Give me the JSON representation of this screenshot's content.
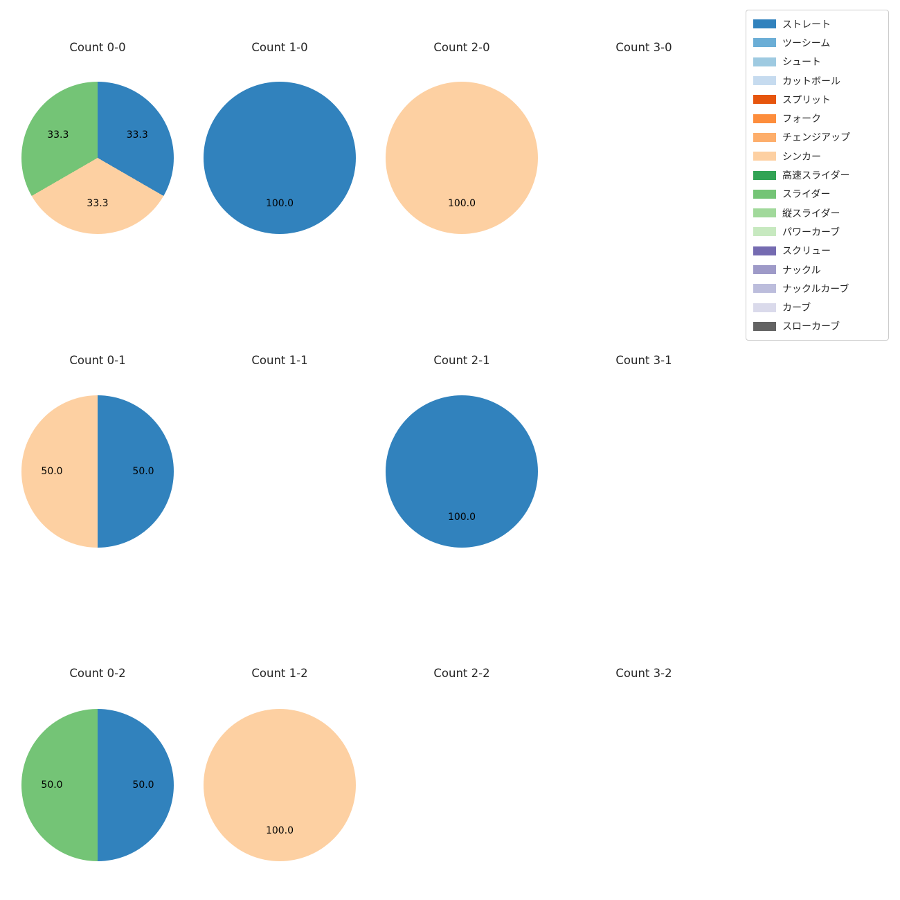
{
  "figure": {
    "background": "#ffffff",
    "title_color": "#262626",
    "label_color": "#000000"
  },
  "legend": {
    "position": "top-right",
    "border_color": "#cccccc",
    "items": [
      {
        "label": "ストレート",
        "color": "#3182bd"
      },
      {
        "label": "ツーシーム",
        "color": "#6baed6"
      },
      {
        "label": "シュート",
        "color": "#9ecae1"
      },
      {
        "label": "カットボール",
        "color": "#c6dbef"
      },
      {
        "label": "スプリット",
        "color": "#e6550d"
      },
      {
        "label": "フォーク",
        "color": "#fd8d3c"
      },
      {
        "label": "チェンジアップ",
        "color": "#fdae6b"
      },
      {
        "label": "シンカー",
        "color": "#fdd0a2"
      },
      {
        "label": "高速スライダー",
        "color": "#31a354"
      },
      {
        "label": "スライダー",
        "color": "#74c476"
      },
      {
        "label": "縦スライダー",
        "color": "#a1d99b"
      },
      {
        "label": "パワーカーブ",
        "color": "#c7e9c0"
      },
      {
        "label": "スクリュー",
        "color": "#756bb1"
      },
      {
        "label": "ナックル",
        "color": "#9e9ac8"
      },
      {
        "label": "ナックルカーブ",
        "color": "#bcbddc"
      },
      {
        "label": "カーブ",
        "color": "#dadaeb"
      },
      {
        "label": "スローカーブ",
        "color": "#636363"
      }
    ]
  },
  "chart_data": [
    {
      "type": "pie",
      "title": "Count 0-0",
      "start_angle_deg": 0,
      "direction": "clockwise",
      "slices": [
        {
          "label": "ストレート",
          "value": 33.3,
          "pct_label": "33.3",
          "color": "#3182bd"
        },
        {
          "label": "シンカー",
          "value": 33.3,
          "pct_label": "33.3",
          "color": "#fdd0a2"
        },
        {
          "label": "スライダー",
          "value": 33.3,
          "pct_label": "33.3",
          "color": "#74c476"
        }
      ]
    },
    {
      "type": "pie",
      "title": "Count 1-0",
      "start_angle_deg": 0,
      "direction": "clockwise",
      "slices": [
        {
          "label": "ストレート",
          "value": 100.0,
          "pct_label": "100.0",
          "color": "#3182bd"
        }
      ]
    },
    {
      "type": "pie",
      "title": "Count 2-0",
      "start_angle_deg": 0,
      "direction": "clockwise",
      "slices": [
        {
          "label": "シンカー",
          "value": 100.0,
          "pct_label": "100.0",
          "color": "#fdd0a2"
        }
      ]
    },
    {
      "type": "pie",
      "title": "Count 3-0",
      "start_angle_deg": 0,
      "direction": "clockwise",
      "slices": []
    },
    {
      "type": "pie",
      "title": "Count 0-1",
      "start_angle_deg": 0,
      "direction": "clockwise",
      "slices": [
        {
          "label": "ストレート",
          "value": 50.0,
          "pct_label": "50.0",
          "color": "#3182bd"
        },
        {
          "label": "シンカー",
          "value": 50.0,
          "pct_label": "50.0",
          "color": "#fdd0a2"
        }
      ]
    },
    {
      "type": "pie",
      "title": "Count 1-1",
      "start_angle_deg": 0,
      "direction": "clockwise",
      "slices": []
    },
    {
      "type": "pie",
      "title": "Count 2-1",
      "start_angle_deg": 0,
      "direction": "clockwise",
      "slices": [
        {
          "label": "ストレート",
          "value": 100.0,
          "pct_label": "100.0",
          "color": "#3182bd"
        }
      ]
    },
    {
      "type": "pie",
      "title": "Count 3-1",
      "start_angle_deg": 0,
      "direction": "clockwise",
      "slices": []
    },
    {
      "type": "pie",
      "title": "Count 0-2",
      "start_angle_deg": 0,
      "direction": "clockwise",
      "slices": [
        {
          "label": "ストレート",
          "value": 50.0,
          "pct_label": "50.0",
          "color": "#3182bd"
        },
        {
          "label": "スライダー",
          "value": 50.0,
          "pct_label": "50.0",
          "color": "#74c476"
        }
      ]
    },
    {
      "type": "pie",
      "title": "Count 1-2",
      "start_angle_deg": 0,
      "direction": "clockwise",
      "slices": [
        {
          "label": "シンカー",
          "value": 100.0,
          "pct_label": "100.0",
          "color": "#fdd0a2"
        }
      ]
    },
    {
      "type": "pie",
      "title": "Count 2-2",
      "start_angle_deg": 0,
      "direction": "clockwise",
      "slices": []
    },
    {
      "type": "pie",
      "title": "Count 3-2",
      "start_angle_deg": 0,
      "direction": "clockwise",
      "slices": []
    }
  ]
}
